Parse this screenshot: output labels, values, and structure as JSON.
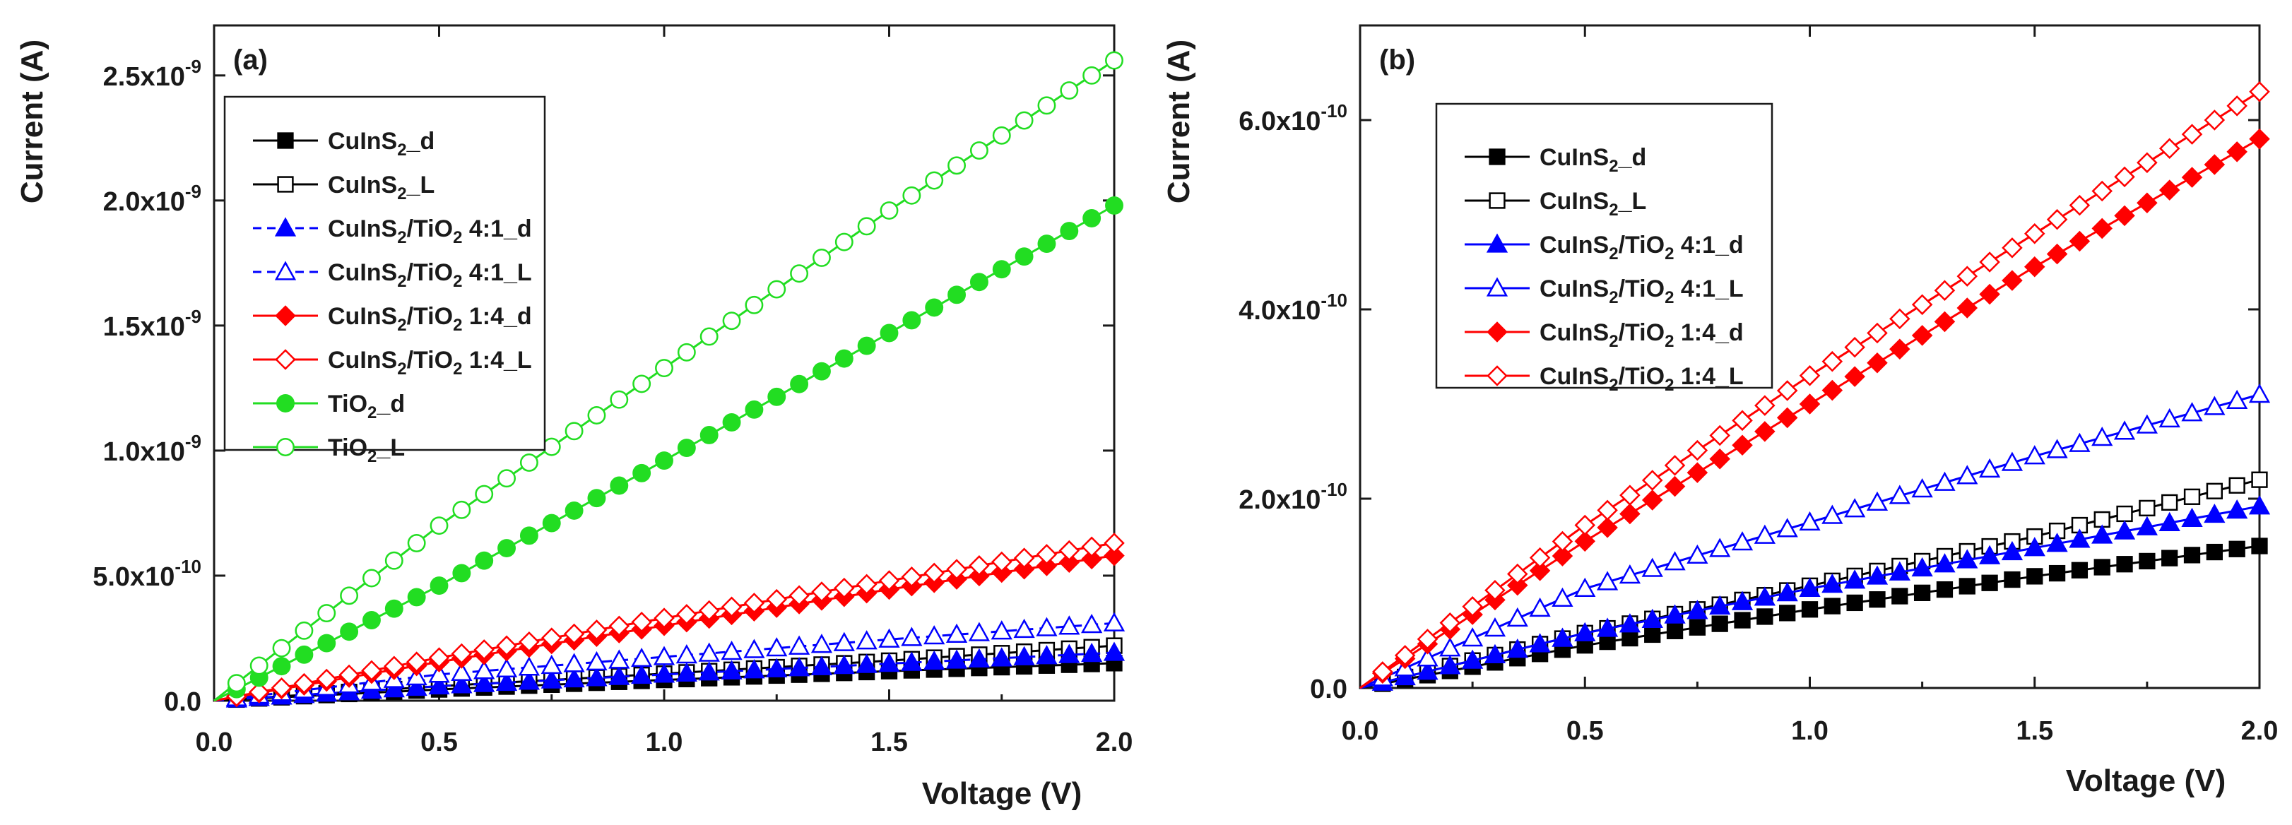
{
  "figure_caption": "",
  "chart_data": [
    {
      "type": "line",
      "panel_label": "(a)",
      "xlabel": "Voltage (V)",
      "ylabel": "Current (A)",
      "xlim": [
        0,
        2.0
      ],
      "ylim": [
        0,
        2.7e-09
      ],
      "x_ticks": [
        0.0,
        0.5,
        1.0,
        1.5,
        2.0
      ],
      "x_tick_labels": [
        "0.0",
        "0.5",
        "1.0",
        "1.5",
        "2.0"
      ],
      "y_ticks": [
        0,
        5e-10,
        1e-09,
        1.5e-09,
        2e-09,
        2.5e-09
      ],
      "y_tick_labels": [
        {
          "mant": "0.0",
          "exp": ""
        },
        {
          "mant": "5.0x10",
          "exp": "-10"
        },
        {
          "mant": "1.0x10",
          "exp": "-9"
        },
        {
          "mant": "1.5x10",
          "exp": "-9"
        },
        {
          "mant": "2.0x10",
          "exp": "-9"
        },
        {
          "mant": "2.5x10",
          "exp": "-9"
        }
      ],
      "grid": false,
      "legend_position": "top-left",
      "series": [
        {
          "name_parts": [
            "CuInS",
            "2",
            "_d"
          ],
          "color": "#000000",
          "marker": "square",
          "filled": true,
          "dashed": false,
          "x": [
            0,
            0.5,
            1.0,
            1.5,
            2.0
          ],
          "y": [
            0,
            4.5e-11,
            8.3e-11,
            1.18e-10,
            1.5e-10
          ]
        },
        {
          "name_parts": [
            "CuInS",
            "2",
            "_L"
          ],
          "color": "#000000",
          "marker": "square",
          "filled": false,
          "dashed": false,
          "x": [
            0,
            0.5,
            1.0,
            1.5,
            2.0
          ],
          "y": [
            0,
            5.8e-11,
            1.08e-10,
            1.6e-10,
            2.2e-10
          ]
        },
        {
          "name_parts": [
            "CuInS",
            "2",
            "/TiO",
            "2",
            " 4:1_d"
          ],
          "color": "#0000ff",
          "marker": "triangle",
          "filled": true,
          "dashed": true,
          "x": [
            0,
            0.5,
            1.0,
            1.5,
            2.0
          ],
          "y": [
            0,
            5.8e-11,
            1.05e-10,
            1.48e-10,
            1.92e-10
          ]
        },
        {
          "name_parts": [
            "CuInS",
            "2",
            "/TiO",
            "2",
            " 4:1_L"
          ],
          "color": "#0000ff",
          "marker": "triangle",
          "filled": false,
          "dashed": true,
          "x": [
            0,
            0.5,
            1.0,
            1.5,
            2.0
          ],
          "y": [
            0,
            1.05e-10,
            1.75e-10,
            2.45e-10,
            3.1e-10
          ]
        },
        {
          "name_parts": [
            "CuInS",
            "2",
            "/TiO",
            "2",
            " 1:4_d"
          ],
          "color": "#ff0000",
          "marker": "diamond",
          "filled": true,
          "dashed": false,
          "x": [
            0,
            0.5,
            1.0,
            1.5,
            2.0
          ],
          "y": [
            0,
            1.55e-10,
            3e-10,
            4.45e-10,
            5.8e-10
          ]
        },
        {
          "name_parts": [
            "CuInS",
            "2",
            "/TiO",
            "2",
            " 1:4_L"
          ],
          "color": "#ff0000",
          "marker": "diamond",
          "filled": false,
          "dashed": false,
          "x": [
            0,
            0.5,
            1.0,
            1.5,
            2.0
          ],
          "y": [
            0,
            1.72e-10,
            3.3e-10,
            4.8e-10,
            6.3e-10
          ]
        },
        {
          "name_parts": [
            "TiO",
            "2",
            "_d"
          ],
          "color": "#22dd22",
          "marker": "circle",
          "filled": true,
          "dashed": false,
          "x": [
            0,
            0.5,
            1.0,
            1.5,
            2.0
          ],
          "y": [
            0,
            4.6e-10,
            9.6e-10,
            1.47e-09,
            1.98e-09
          ]
        },
        {
          "name_parts": [
            "TiO",
            "2",
            "_L"
          ],
          "color": "#22dd22",
          "marker": "circle",
          "filled": false,
          "dashed": false,
          "x": [
            0,
            0.5,
            1.0,
            1.5,
            2.0
          ],
          "y": [
            0,
            7e-10,
            1.33e-09,
            1.96e-09,
            2.56e-09
          ]
        }
      ]
    },
    {
      "type": "line",
      "panel_label": "(b)",
      "xlabel": "Voltage (V)",
      "ylabel": "Current (A)",
      "xlim": [
        0,
        2.0
      ],
      "ylim": [
        0,
        7e-10
      ],
      "x_ticks": [
        0.0,
        0.5,
        1.0,
        1.5,
        2.0
      ],
      "x_tick_labels": [
        "0.0",
        "0.5",
        "1.0",
        "1.5",
        "2.0"
      ],
      "y_ticks": [
        0,
        2e-10,
        4e-10,
        6e-10
      ],
      "y_tick_labels": [
        {
          "mant": "0.0",
          "exp": ""
        },
        {
          "mant": "2.0x10",
          "exp": "-10"
        },
        {
          "mant": "4.0x10",
          "exp": "-10"
        },
        {
          "mant": "6.0x10",
          "exp": "-10"
        }
      ],
      "grid": false,
      "legend_position": "top-left",
      "series": [
        {
          "name_parts": [
            "CuInS",
            "2",
            "_d"
          ],
          "color": "#000000",
          "marker": "square",
          "filled": true,
          "dashed": false,
          "x": [
            0,
            0.5,
            1.0,
            1.5,
            2.0
          ],
          "y": [
            0,
            4.5e-11,
            8.3e-11,
            1.18e-10,
            1.5e-10
          ]
        },
        {
          "name_parts": [
            "CuInS",
            "2",
            "_L"
          ],
          "color": "#000000",
          "marker": "square",
          "filled": false,
          "dashed": false,
          "x": [
            0,
            0.5,
            1.0,
            1.5,
            2.0
          ],
          "y": [
            0,
            5.8e-11,
            1.08e-10,
            1.6e-10,
            2.2e-10
          ]
        },
        {
          "name_parts": [
            "CuInS",
            "2",
            "/TiO",
            "2",
            " 4:1_d"
          ],
          "color": "#0000ff",
          "marker": "triangle",
          "filled": true,
          "dashed": false,
          "x": [
            0,
            0.5,
            1.0,
            1.5,
            2.0
          ],
          "y": [
            0,
            5.8e-11,
            1.05e-10,
            1.48e-10,
            1.92e-10
          ]
        },
        {
          "name_parts": [
            "CuInS",
            "2",
            "/TiO",
            "2",
            " 4:1_L"
          ],
          "color": "#0000ff",
          "marker": "triangle",
          "filled": false,
          "dashed": false,
          "x": [
            0,
            0.5,
            1.0,
            1.5,
            2.0
          ],
          "y": [
            0,
            1.05e-10,
            1.75e-10,
            2.45e-10,
            3.1e-10
          ]
        },
        {
          "name_parts": [
            "CuInS",
            "2",
            "/TiO",
            "2",
            " 1:4_d"
          ],
          "color": "#ff0000",
          "marker": "diamond",
          "filled": true,
          "dashed": false,
          "x": [
            0,
            0.5,
            1.0,
            1.5,
            2.0
          ],
          "y": [
            0,
            1.55e-10,
            3e-10,
            4.45e-10,
            5.8e-10
          ]
        },
        {
          "name_parts": [
            "CuInS",
            "2",
            "/TiO",
            "2",
            " 1:4_L"
          ],
          "color": "#ff0000",
          "marker": "diamond",
          "filled": false,
          "dashed": false,
          "x": [
            0,
            0.5,
            1.0,
            1.5,
            2.0
          ],
          "y": [
            0,
            1.72e-10,
            3.3e-10,
            4.8e-10,
            6.3e-10
          ]
        }
      ]
    }
  ]
}
